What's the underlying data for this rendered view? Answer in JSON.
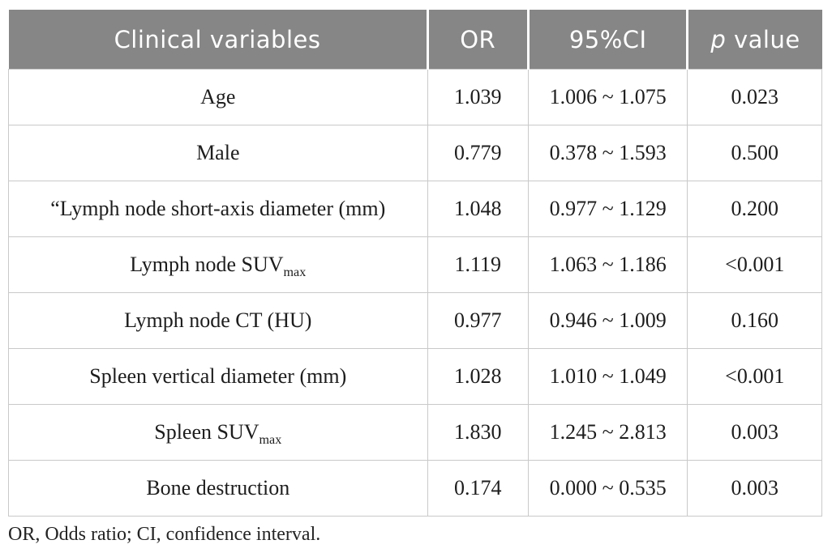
{
  "table": {
    "header": {
      "clinical_variables": "Clinical variables",
      "or": "OR",
      "ci": "95%CI",
      "p_italic": "p",
      "p_rest": " value"
    },
    "rows": [
      {
        "variable": "Age",
        "variable_sub": "",
        "or": "1.039",
        "ci": "1.006 ~ 1.075",
        "p": "0.023"
      },
      {
        "variable": "Male",
        "variable_sub": "",
        "or": "0.779",
        "ci": "0.378 ~ 1.593",
        "p": "0.500"
      },
      {
        "variable": "“Lymph node short-axis diameter (mm)",
        "variable_sub": "",
        "or": "1.048",
        "ci": "0.977 ~ 1.129",
        "p": "0.200"
      },
      {
        "variable": "Lymph node SUV",
        "variable_sub": "max",
        "or": "1.119",
        "ci": "1.063 ~ 1.186",
        "p": "<0.001"
      },
      {
        "variable": "Lymph node CT (HU)",
        "variable_sub": "",
        "or": "0.977",
        "ci": "0.946 ~ 1.009",
        "p": "0.160"
      },
      {
        "variable": "Spleen vertical diameter (mm)",
        "variable_sub": "",
        "or": "1.028",
        "ci": "1.010 ~ 1.049",
        "p": "<0.001"
      },
      {
        "variable": "Spleen SUV",
        "variable_sub": "max",
        "or": "1.830",
        "ci": "1.245 ~ 2.813",
        "p": "0.003"
      },
      {
        "variable": "Bone destruction",
        "variable_sub": "",
        "or": "0.174",
        "ci": "0.000 ~ 0.535",
        "p": "0.003"
      }
    ],
    "footnote": "OR, Odds ratio; CI, confidence interval.",
    "colors": {
      "header_bg": "#868686",
      "header_text": "#ffffff",
      "body_text": "#1d1d1d",
      "grid_border": "#c9c9c9",
      "background": "#ffffff"
    }
  }
}
